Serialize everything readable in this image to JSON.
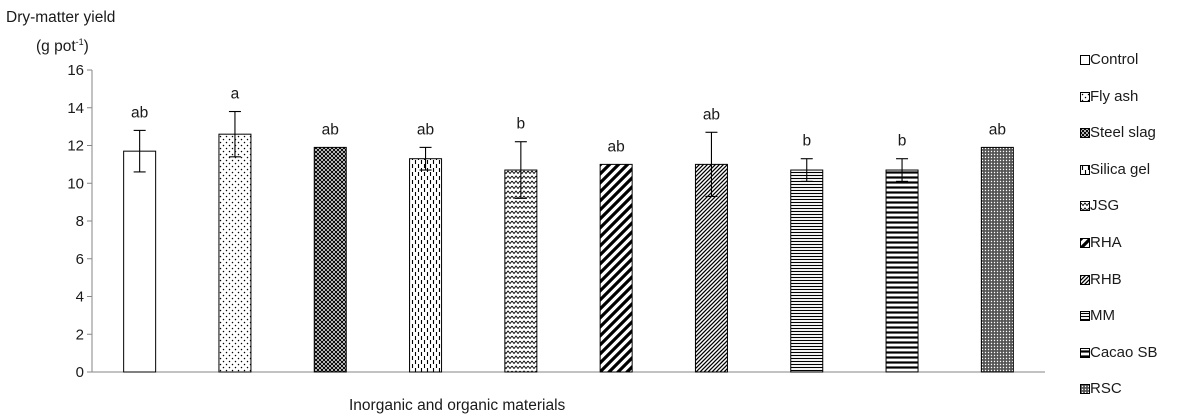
{
  "chart_data": {
    "type": "bar",
    "title": "",
    "ylabel_line1": "Dry-matter yield",
    "ylabel_unit_pre": "(g pot",
    "ylabel_unit_sup": "-1",
    "ylabel_unit_post": ")",
    "xlabel": "Inorganic and organic materials",
    "ylim": [
      0,
      16
    ],
    "yticks": [
      0,
      2,
      4,
      6,
      8,
      10,
      12,
      14,
      16
    ],
    "grid": false,
    "legend_position": "right",
    "series": [
      {
        "name": "Control",
        "value": 11.7,
        "error": 1.1,
        "letter": "ab",
        "pattern": "plain"
      },
      {
        "name": "Fly ash",
        "value": 12.6,
        "error": 1.2,
        "letter": "a",
        "pattern": "dots"
      },
      {
        "name": "Steel slag",
        "value": 11.9,
        "error": 0.05,
        "letter": "ab",
        "pattern": "crosshatch"
      },
      {
        "name": "Silica gel",
        "value": 11.3,
        "error": 0.6,
        "letter": "ab",
        "pattern": "dashed-vertical"
      },
      {
        "name": "JSG",
        "value": 10.7,
        "error": 1.5,
        "letter": "b",
        "pattern": "wave"
      },
      {
        "name": "RHA",
        "value": 11.0,
        "error": 0.0,
        "letter": "ab",
        "pattern": "wide-diagonal"
      },
      {
        "name": "RHB",
        "value": 11.0,
        "error": 1.7,
        "letter": "ab",
        "pattern": "dense-diagonal"
      },
      {
        "name": "MM",
        "value": 10.7,
        "error": 0.6,
        "letter": "b",
        "pattern": "narrow-horizontal"
      },
      {
        "name": "Cacao SB",
        "value": 10.7,
        "error": 0.6,
        "letter": "b",
        "pattern": "wide-horizontal"
      },
      {
        "name": "RSC",
        "value": 11.9,
        "error": 0.05,
        "letter": "ab",
        "pattern": "dense-dots"
      }
    ]
  }
}
